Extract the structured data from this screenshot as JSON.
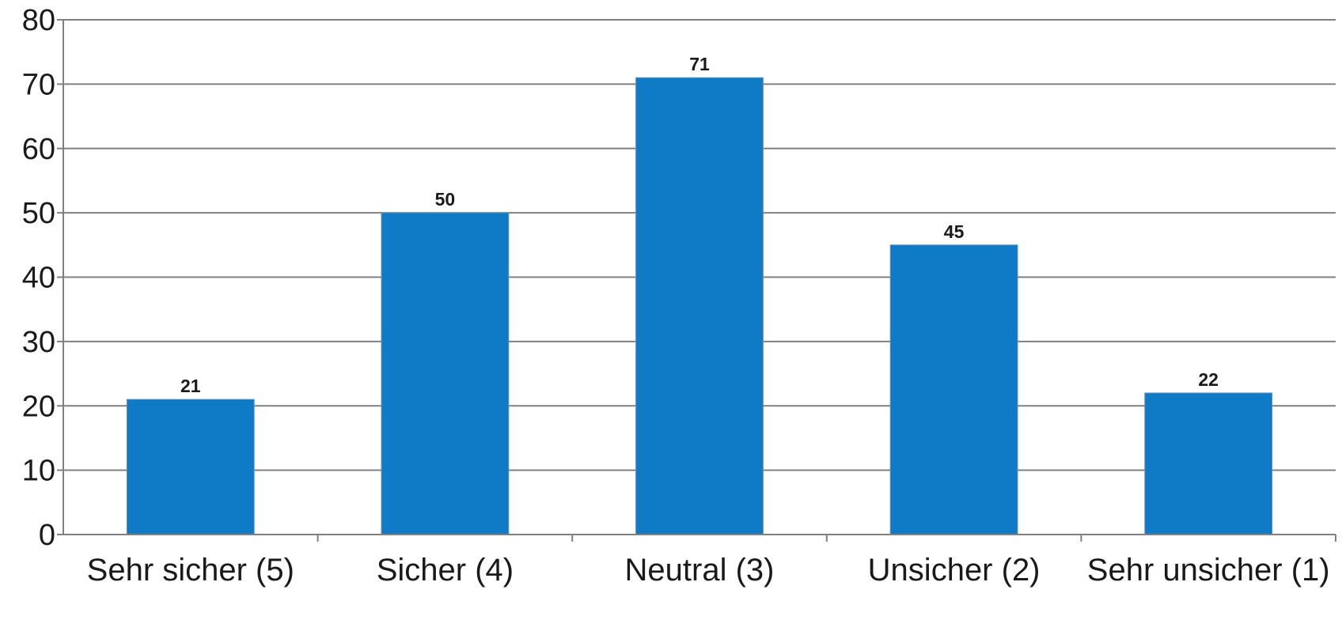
{
  "chart_data": {
    "type": "bar",
    "categories": [
      "Sehr sicher (5)",
      "Sicher (4)",
      "Neutral (3)",
      "Unsicher (2)",
      "Sehr unsicher (1)"
    ],
    "values": [
      21,
      50,
      71,
      45,
      22
    ],
    "data_labels": [
      "21",
      "50",
      "71",
      "45",
      "22"
    ],
    "ylim": [
      0,
      80
    ],
    "yticks": [
      0,
      10,
      20,
      30,
      40,
      50,
      60,
      70,
      80
    ],
    "grid": true,
    "legend": "none",
    "colors": {
      "bar": "#0f7bc7",
      "grid": "#808080",
      "text": "#1a1a1a"
    }
  }
}
